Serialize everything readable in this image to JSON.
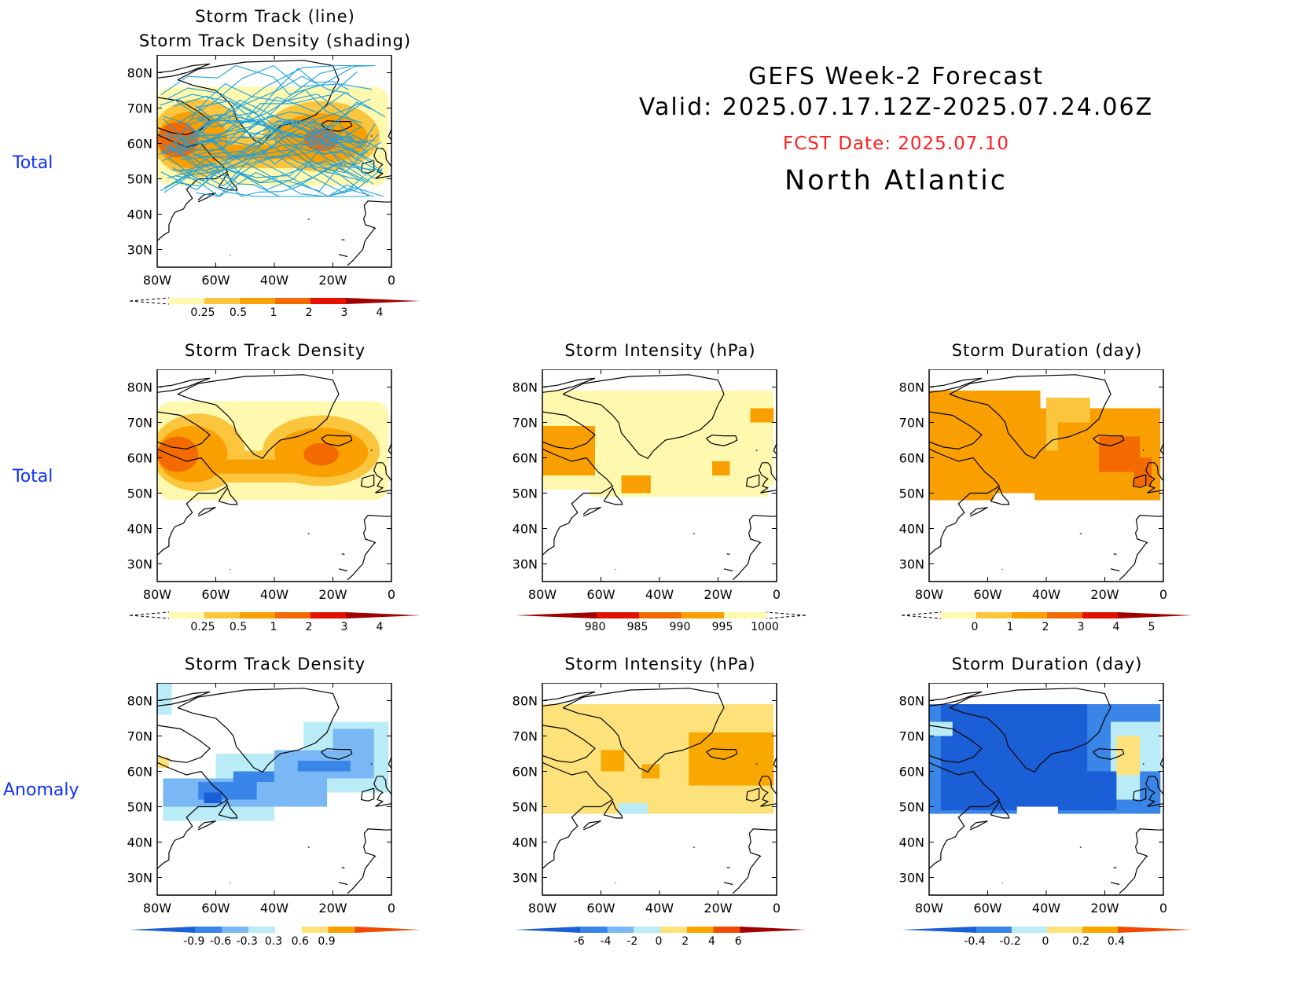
{
  "header": {
    "line1": "GEFS Week-2 Forecast",
    "line2": "Valid: 2025.07.17.12Z-2025.07.24.06Z",
    "fcst": "FCST Date: 2025.07.10",
    "region": "North Atlantic"
  },
  "row_labels": [
    "Total",
    "Total",
    "Anomaly"
  ],
  "lat_labels": [
    "80N",
    "70N",
    "60N",
    "50N",
    "40N",
    "30N"
  ],
  "lon_labels": [
    "80W",
    "60W",
    "40W",
    "20W",
    "0"
  ],
  "panels": [
    {
      "id": "p0",
      "title1": "Storm Track (line)",
      "title2": "Storm Track Density (shading)",
      "field": "density",
      "lines": true,
      "cbar": "density"
    },
    {
      "id": "p1",
      "title1": "Storm Track Density",
      "title2": "",
      "field": "density",
      "lines": false,
      "cbar": "density"
    },
    {
      "id": "p2",
      "title1": "Storm Intensity (hPa)",
      "title2": "",
      "field": "intensity",
      "lines": false,
      "cbar": "intensity"
    },
    {
      "id": "p3",
      "title1": "Storm Duration (day)",
      "title2": "",
      "field": "duration",
      "lines": false,
      "cbar": "duration"
    },
    {
      "id": "p4",
      "title1": "Storm Track Density",
      "title2": "",
      "field": "dens_anom",
      "lines": false,
      "cbar": "dens_anom"
    },
    {
      "id": "p5",
      "title1": "Storm Intensity (hPa)",
      "title2": "",
      "field": "int_anom",
      "lines": false,
      "cbar": "int_anom"
    },
    {
      "id": "p6",
      "title1": "Storm Duration (day)",
      "title2": "",
      "field": "dur_anom",
      "lines": false,
      "cbar": "dur_anom"
    }
  ],
  "colorbars": {
    "density": {
      "labels": [
        "0.25",
        "0.5",
        "1",
        "2",
        "3",
        "4"
      ],
      "colors": [
        "#fff9b0",
        "#fbc63e",
        "#f99f00",
        "#f26a00",
        "#e31200",
        "#a00000"
      ],
      "low_dashed": true
    },
    "intensity": {
      "labels": [
        "980",
        "985",
        "990",
        "995",
        "1000"
      ],
      "colors": [
        "#a00000",
        "#e31200",
        "#f26a00",
        "#f99f00",
        "#fff9b0"
      ],
      "high_dashed": true
    },
    "duration": {
      "labels": [
        "0",
        "1",
        "2",
        "3",
        "4",
        "5"
      ],
      "colors": [
        "#fff9b0",
        "#fbc63e",
        "#f99f00",
        "#f26a00",
        "#e31200",
        "#a00000"
      ],
      "low_dashed": true
    },
    "dens_anom": {
      "labels": [
        "-0.9",
        "-0.6",
        "-0.3",
        "0.3",
        "0.6",
        "0.9"
      ],
      "colors": [
        "#1a5fd6",
        "#3a85e8",
        "#7ab8f5",
        "#b9ecf6",
        "#ffffff",
        "#fde17a",
        "#f99f00",
        "#f24a00"
      ]
    },
    "int_anom": {
      "labels": [
        "-6",
        "-4",
        "-2",
        "0",
        "2",
        "4",
        "6"
      ],
      "colors": [
        "#1a5fd6",
        "#3a85e8",
        "#7ab8f5",
        "#b9ecf6",
        "#fde17a",
        "#f9a800",
        "#f24a00",
        "#a00000"
      ]
    },
    "dur_anom": {
      "labels": [
        "-0.4",
        "-0.2",
        "0",
        "0.2",
        "0.4"
      ],
      "colors": [
        "#1a5fd6",
        "#3a85e8",
        "#b9ecf6",
        "#fde17a",
        "#f9a800",
        "#f24a00"
      ]
    }
  },
  "colors": {
    "label_blue": "#1030ff",
    "fcst_red": "#ff2020",
    "track_line": "#1aa0e0",
    "coast": "#000000"
  }
}
